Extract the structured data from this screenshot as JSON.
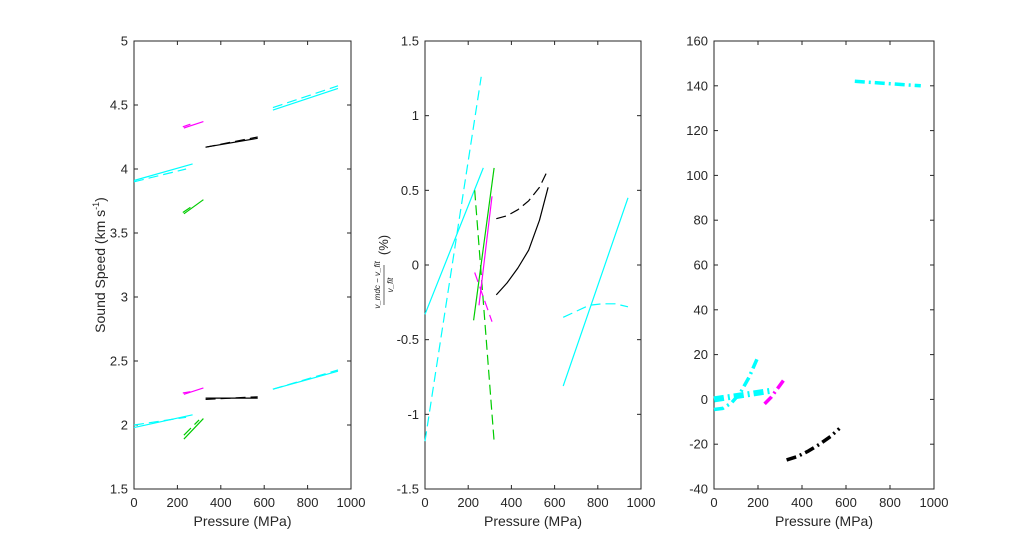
{
  "chart_data": [
    {
      "type": "line",
      "xlabel": "Pressure (MPa)",
      "ylabel_main": "Sound Speed (km s",
      "ylabel_sup": "-1",
      "ylabel_close": ")",
      "xlim": [
        0,
        1000
      ],
      "ylim": [
        1.5,
        5
      ],
      "xticks": [
        0,
        200,
        400,
        600,
        800,
        1000
      ],
      "yticks": [
        1.5,
        2,
        2.5,
        3,
        3.5,
        4,
        4.5,
        5
      ],
      "ytick_labels": [
        "1.5",
        "2",
        "2.5",
        "3",
        "3.5",
        "4",
        "4.5",
        "5"
      ],
      "series": [
        {
          "color": "#00ffff",
          "dash": "solid",
          "x": [
            0,
            270
          ],
          "y": [
            3.91,
            4.04
          ]
        },
        {
          "color": "#00ffff",
          "dash": "dashed",
          "x": [
            0,
            240
          ],
          "y": [
            3.9,
            4.0
          ]
        },
        {
          "color": "#ff00ff",
          "dash": "solid",
          "x": [
            230,
            320
          ],
          "y": [
            4.32,
            4.37
          ]
        },
        {
          "color": "#ff00ff",
          "dash": "dashed",
          "x": [
            225,
            260
          ],
          "y": [
            4.33,
            4.35
          ]
        },
        {
          "color": "#00cc00",
          "dash": "solid",
          "x": [
            230,
            320
          ],
          "y": [
            3.65,
            3.76
          ]
        },
        {
          "color": "#00cc00",
          "dash": "dashed",
          "x": [
            225,
            260
          ],
          "y": [
            3.66,
            3.7
          ]
        },
        {
          "color": "#000000",
          "dash": "solid",
          "x": [
            330,
            570
          ],
          "y": [
            4.17,
            4.24
          ]
        },
        {
          "color": "#000000",
          "dash": "dashed",
          "x": [
            330,
            570
          ],
          "y": [
            4.17,
            4.25
          ]
        },
        {
          "color": "#00ffff",
          "dash": "solid",
          "x": [
            640,
            940
          ],
          "y": [
            4.46,
            4.63
          ]
        },
        {
          "color": "#00ffff",
          "dash": "dashed",
          "x": [
            640,
            940
          ],
          "y": [
            4.48,
            4.65
          ]
        },
        {
          "color": "#00ffff",
          "dash": "solid",
          "x": [
            0,
            270
          ],
          "y": [
            1.98,
            2.08
          ]
        },
        {
          "color": "#00ffff",
          "dash": "dashed",
          "x": [
            0,
            240
          ],
          "y": [
            2.0,
            2.06
          ]
        },
        {
          "color": "#ff00ff",
          "dash": "solid",
          "x": [
            230,
            320
          ],
          "y": [
            2.24,
            2.29
          ]
        },
        {
          "color": "#ff00ff",
          "dash": "dashed",
          "x": [
            225,
            260
          ],
          "y": [
            2.25,
            2.26
          ]
        },
        {
          "color": "#00cc00",
          "dash": "solid",
          "x": [
            230,
            320
          ],
          "y": [
            1.89,
            2.05
          ]
        },
        {
          "color": "#00cc00",
          "dash": "dashed",
          "x": [
            230,
            300
          ],
          "y": [
            1.92,
            2.04
          ]
        },
        {
          "color": "#000000",
          "dash": "solid",
          "x": [
            330,
            570
          ],
          "y": [
            2.21,
            2.21
          ]
        },
        {
          "color": "#000000",
          "dash": "dashed",
          "x": [
            330,
            570
          ],
          "y": [
            2.2,
            2.22
          ]
        },
        {
          "color": "#00ffff",
          "dash": "solid",
          "x": [
            640,
            940
          ],
          "y": [
            2.28,
            2.42
          ]
        },
        {
          "color": "#00ffff",
          "dash": "dashed",
          "x": [
            640,
            940
          ],
          "y": [
            2.28,
            2.43
          ]
        }
      ]
    },
    {
      "type": "line",
      "xlabel": "Pressure (MPa)",
      "ylabel_main": "(%)",
      "ylabel_frac_num": "v_mdc − v_fit",
      "ylabel_frac_den": "v_fit",
      "xlim": [
        0,
        1000
      ],
      "ylim": [
        -1.5,
        1.5
      ],
      "xticks": [
        0,
        200,
        400,
        600,
        800,
        1000
      ],
      "yticks": [
        -1.5,
        -1,
        -0.5,
        0,
        0.5,
        1,
        1.5
      ],
      "ytick_labels": [
        "-1.5",
        "-1",
        "-0.5",
        "0",
        "0.5",
        "1",
        "1.5"
      ],
      "series": [
        {
          "color": "#00ffff",
          "dash": "solid",
          "x": [
            0,
            270
          ],
          "y": [
            -0.33,
            0.65
          ]
        },
        {
          "color": "#00ffff",
          "dash": "dashed",
          "x": [
            0,
            260
          ],
          "y": [
            -1.18,
            1.26
          ]
        },
        {
          "color": "#00cc00",
          "dash": "solid",
          "x": [
            225,
            320
          ],
          "y": [
            -0.37,
            0.65
          ]
        },
        {
          "color": "#00cc00",
          "dash": "dashed",
          "x": [
            230,
            320
          ],
          "y": [
            0.5,
            -1.18
          ]
        },
        {
          "color": "#ff00ff",
          "dash": "solid",
          "x": [
            250,
            310
          ],
          "y": [
            -0.27,
            0.46
          ]
        },
        {
          "color": "#ff00ff",
          "dash": "dashed",
          "x": [
            230,
            310
          ],
          "y": [
            -0.05,
            -0.38
          ]
        },
        {
          "color": "#000000",
          "dash": "solid",
          "x": [
            330,
            380,
            430,
            480,
            530,
            570
          ],
          "y": [
            -0.2,
            -0.12,
            -0.02,
            0.1,
            0.3,
            0.52
          ]
        },
        {
          "color": "#000000",
          "dash": "dashed",
          "x": [
            330,
            380,
            430,
            480,
            530,
            570
          ],
          "y": [
            0.31,
            0.33,
            0.37,
            0.43,
            0.52,
            0.64
          ]
        },
        {
          "color": "#00ffff",
          "dash": "solid",
          "x": [
            640,
            940
          ],
          "y": [
            -0.81,
            0.45
          ]
        },
        {
          "color": "#00ffff",
          "dash": "dashed",
          "x": [
            640,
            700,
            760,
            820,
            880,
            940
          ],
          "y": [
            -0.35,
            -0.31,
            -0.27,
            -0.26,
            -0.26,
            -0.28
          ]
        }
      ]
    },
    {
      "type": "line",
      "xlabel": "Pressure (MPa)",
      "xlim": [
        0,
        1000
      ],
      "ylim": [
        -40,
        160
      ],
      "xticks": [
        0,
        200,
        400,
        600,
        800,
        1000
      ],
      "yticks": [
        -40,
        -20,
        0,
        20,
        40,
        60,
        80,
        100,
        120,
        140,
        160
      ],
      "ytick_labels": [
        "-40",
        "-20",
        "0",
        "20",
        "40",
        "60",
        "80",
        "100",
        "120",
        "140",
        "160"
      ],
      "series": [
        {
          "color": "#00ffff",
          "dash": "dashdot",
          "width": 3.5,
          "x": [
            0,
            40,
            80,
            120,
            160,
            200
          ],
          "y": [
            -4.5,
            -4,
            -1.5,
            3,
            10,
            19
          ]
        },
        {
          "color": "#00ffff",
          "dash": "dashdot",
          "width": 6,
          "x": [
            0,
            270
          ],
          "y": [
            0,
            4
          ]
        },
        {
          "color": "#ff00ff",
          "dash": "dashdot",
          "width": 3.5,
          "x": [
            230,
            260,
            290,
            320
          ],
          "y": [
            -2,
            1,
            5,
            9
          ]
        },
        {
          "color": "#000000",
          "dash": "dashdot",
          "width": 3.5,
          "x": [
            330,
            380,
            430,
            480,
            530,
            570
          ],
          "y": [
            -27,
            -25.5,
            -23,
            -20,
            -16.5,
            -13
          ]
        },
        {
          "color": "#00ffff",
          "dash": "dashdot",
          "width": 3.5,
          "x": [
            640,
            940
          ],
          "y": [
            142,
            140
          ]
        }
      ]
    }
  ]
}
